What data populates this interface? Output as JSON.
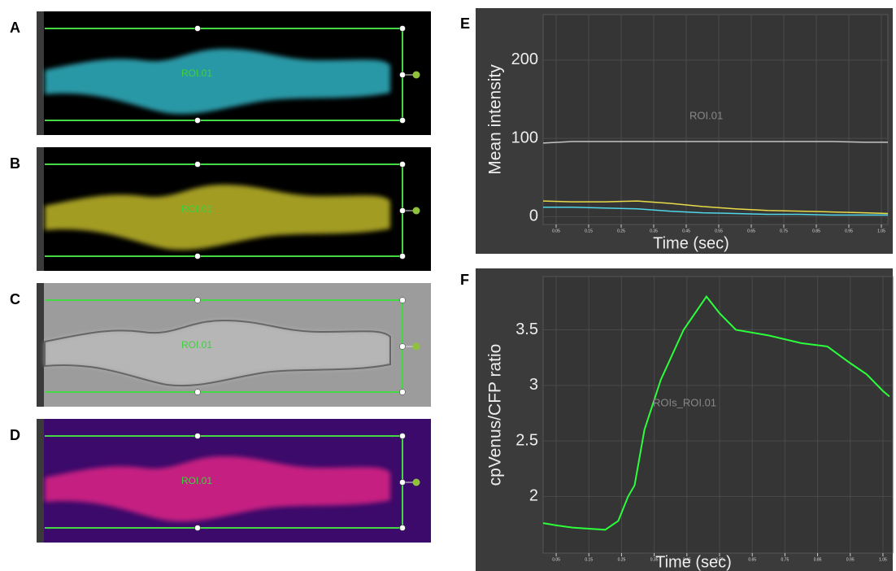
{
  "panels": [
    {
      "label": "A",
      "roi_label": "ROI.01",
      "background": "#000000",
      "color": "#2fa9b8"
    },
    {
      "label": "B",
      "roi_label": "ROI.01",
      "background": "#000000",
      "color": "#b5ad25"
    },
    {
      "label": "C",
      "roi_label": "ROI.01",
      "background": "#9c9c9c",
      "color": "#b9b9b9"
    },
    {
      "label": "D",
      "roi_label": "ROI.01",
      "background": "#3c0a6a",
      "color": "#d42384"
    }
  ],
  "chart_data": [
    {
      "type": "line",
      "label": "E",
      "annotation": "ROI.01",
      "y_label": "Mean intensity",
      "x_label": "Time (sec)",
      "x": [
        0.01,
        0.1,
        0.2,
        0.3,
        0.4,
        0.5,
        0.6,
        0.7,
        0.8,
        0.9,
        1.0,
        1.07
      ],
      "series": [
        {
          "color": "#c4c4c4",
          "values": [
            94,
            96,
            96,
            96,
            96,
            96,
            96,
            96,
            96,
            96,
            95,
            95
          ]
        },
        {
          "color": "#e8dc4a",
          "values": [
            20,
            19,
            19,
            20,
            17,
            13,
            10,
            8,
            7,
            6,
            5,
            4
          ]
        },
        {
          "color": "#4fd6e8",
          "values": [
            12,
            12,
            11,
            10,
            7,
            5,
            4,
            3,
            3,
            2,
            2,
            2
          ]
        }
      ],
      "xlim": [
        0.01,
        1.07
      ],
      "ylim": [
        -10,
        258
      ],
      "xticks": [
        0.05,
        0.15,
        0.25,
        0.35,
        0.45,
        0.55,
        0.65,
        0.75,
        0.85,
        0.95,
        1.05
      ],
      "yticks": [
        0,
        100,
        200
      ],
      "grid": true
    },
    {
      "type": "line",
      "label": "F",
      "annotation": "ROIs_ROI.01",
      "y_label": "cpVenus/CFP ratio",
      "x_label": "Time (sec)",
      "x": [
        0.01,
        0.05,
        0.1,
        0.15,
        0.2,
        0.24,
        0.27,
        0.29,
        0.32,
        0.37,
        0.44,
        0.51,
        0.55,
        0.6,
        0.7,
        0.8,
        0.88,
        0.95,
        1.0,
        1.05,
        1.07
      ],
      "series": [
        {
          "color": "#2bff3b",
          "values": [
            1.76,
            1.74,
            1.72,
            1.71,
            1.7,
            1.78,
            2.0,
            2.1,
            2.6,
            3.05,
            3.5,
            3.8,
            3.65,
            3.5,
            3.45,
            3.38,
            3.35,
            3.2,
            3.1,
            2.95,
            2.9
          ]
        }
      ],
      "xlim": [
        0.01,
        1.08
      ],
      "ylim": [
        1.49,
        3.98
      ],
      "xticks": [
        0.05,
        0.15,
        0.25,
        0.35,
        0.45,
        0.55,
        0.65,
        0.75,
        0.85,
        0.95,
        1.05
      ],
      "yticks": [
        2,
        2.5,
        3,
        3.5
      ],
      "grid": true
    }
  ]
}
